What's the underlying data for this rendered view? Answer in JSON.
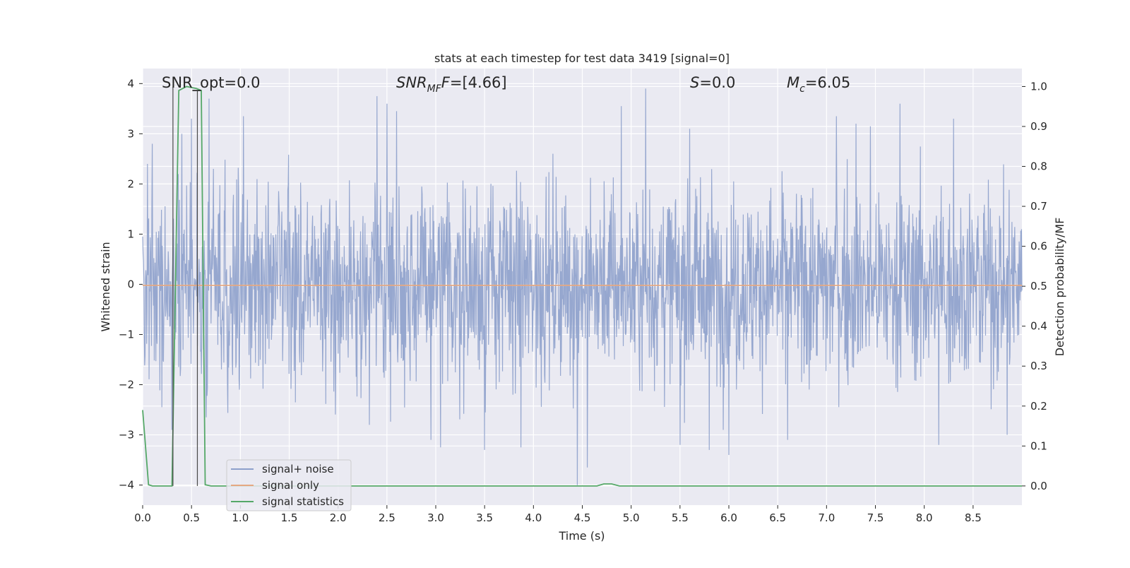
{
  "chart_data": {
    "type": "line",
    "title": "stats at each timestep for test data 3419 [signal=0]",
    "xlabel": "Time (s)",
    "ylabel": "Whitened strain",
    "y2label": "Detection probability/MF",
    "xlim": [
      0.0,
      9.0
    ],
    "ylim": [
      -4.4,
      4.3
    ],
    "y2lim": [
      -0.048,
      1.045
    ],
    "x_ticks": [
      0.0,
      0.5,
      1.0,
      1.5,
      2.0,
      2.5,
      3.0,
      3.5,
      4.0,
      4.5,
      5.0,
      5.5,
      6.0,
      6.5,
      7.0,
      7.5,
      8.0,
      8.5
    ],
    "x_tick_labels": [
      "0.0",
      "0.5",
      "1.0",
      "1.5",
      "2.0",
      "2.5",
      "3.0",
      "3.5",
      "4.0",
      "4.5",
      "5.0",
      "5.5",
      "6.0",
      "6.5",
      "7.0",
      "7.5",
      "8.0",
      "8.5"
    ],
    "y_ticks": [
      4,
      3,
      2,
      1,
      0,
      -1,
      -2,
      -3,
      -4
    ],
    "y_tick_labels": [
      "4",
      "3",
      "2",
      "1",
      "0",
      "−1",
      "−2",
      "−3",
      "−4"
    ],
    "y2_ticks": [
      1.0,
      0.9,
      0.8,
      0.7,
      0.6,
      0.5,
      0.4,
      0.3,
      0.2,
      0.1,
      0.0
    ],
    "y2_tick_labels": [
      "1.0",
      "0.9",
      "0.8",
      "0.7",
      "0.6",
      "0.5",
      "0.4",
      "0.3",
      "0.2",
      "0.1",
      "0.0"
    ],
    "grid": true,
    "legend_position": "lower-left",
    "annotations": {
      "snr_opt": "SNR_opt=0.0",
      "snr_mf_base": "SNR",
      "snr_mf_sub": "MF",
      "snr_mf_rest": "F=[4.66]",
      "s_italic": "S",
      "s_rest": "=0.0",
      "mc_base": "M",
      "mc_sub": "c",
      "mc_rest": "=6.05"
    },
    "series": [
      {
        "name": "signal+ noise",
        "color": "#8da0cb",
        "axis": "left",
        "description": "whitened noise strain, roughly symmetric about 0",
        "std_estimate": 0.95,
        "peaks": [
          [
            0.05,
            2.4
          ],
          [
            0.1,
            2.8
          ],
          [
            0.4,
            3.0
          ],
          [
            0.5,
            3.3
          ],
          [
            0.68,
            3.7
          ],
          [
            1.03,
            3.35
          ],
          [
            2.4,
            3.75
          ],
          [
            2.5,
            3.6
          ],
          [
            2.6,
            3.45
          ],
          [
            4.9,
            3.55
          ],
          [
            5.15,
            3.9
          ],
          [
            5.6,
            3.1
          ],
          [
            7.1,
            3.35
          ],
          [
            7.3,
            3.2
          ],
          [
            7.45,
            3.15
          ],
          [
            7.75,
            3.6
          ],
          [
            8.3,
            3.3
          ],
          [
            8.85,
            2.7
          ]
        ],
        "troughs": [
          [
            0.3,
            -2.9
          ],
          [
            0.65,
            -2.65
          ],
          [
            2.32,
            -2.8
          ],
          [
            2.95,
            -3.1
          ],
          [
            3.05,
            -3.25
          ],
          [
            3.5,
            -3.3
          ],
          [
            3.87,
            -3.25
          ],
          [
            4.45,
            -4.0
          ],
          [
            4.55,
            -3.65
          ],
          [
            5.5,
            -3.2
          ],
          [
            5.8,
            -3.3
          ],
          [
            6.0,
            -3.4
          ],
          [
            6.6,
            -3.1
          ],
          [
            8.15,
            -3.2
          ],
          [
            8.85,
            -3.0
          ]
        ]
      },
      {
        "name": "signal only",
        "color": "#e5a882",
        "axis": "left",
        "x": [
          0.0,
          9.0
        ],
        "y": [
          -0.02,
          -0.02
        ]
      },
      {
        "name": "signal statistics",
        "color": "#55a868",
        "axis": "right",
        "x": [
          0.0,
          0.06,
          0.1,
          0.3,
          0.37,
          0.45,
          0.55,
          0.6,
          0.64,
          0.7,
          4.65,
          4.72,
          4.8,
          4.88,
          9.0
        ],
        "y": [
          0.19,
          0.003,
          0.0,
          0.0,
          0.99,
          1.0,
          0.995,
          0.99,
          0.003,
          0.0,
          0.0,
          0.005,
          0.005,
          0.0,
          0.0
        ]
      }
    ]
  },
  "legend": {
    "items": [
      {
        "label": "signal+ noise",
        "color": "#8da0cb"
      },
      {
        "label": "signal only",
        "color": "#e5a882"
      },
      {
        "label": "signal statistics",
        "color": "#55a868"
      }
    ]
  }
}
